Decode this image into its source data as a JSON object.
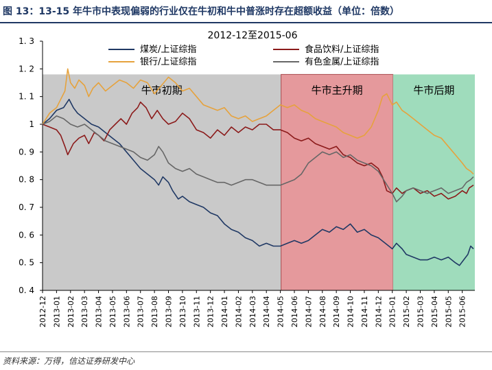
{
  "figure": {
    "title": "图 13：13-15 年牛市中表现偏弱的行业仅在牛初和牛中普涨时存在超额收益（单位：倍数）",
    "source": "资料来源：万得，信达证券研发中心"
  },
  "chart_data": {
    "type": "line",
    "title": "2012-12至2015-06",
    "xlabel": "",
    "ylabel": "",
    "ylim": [
      0.4,
      1.3
    ],
    "yticks": [
      0.4,
      0.5,
      0.6,
      0.7,
      0.8,
      0.9,
      1,
      1.1,
      1.2,
      1.3
    ],
    "ytick_labels": [
      "0. 4",
      "0. 5",
      "0. 6",
      "0. 7",
      "0. 8",
      "0. 9",
      "1",
      "1. 1",
      "1. 2",
      "1. 3"
    ],
    "categories": [
      "2012-12",
      "2013-01",
      "2013-02",
      "2013-03",
      "2013-04",
      "2013-05",
      "2013-06",
      "2013-07",
      "2013-08",
      "2013-09",
      "2013-10",
      "2013-11",
      "2013-12",
      "2014-01",
      "2014-02",
      "2014-03",
      "2014-04",
      "2014-05",
      "2014-06",
      "2014-07",
      "2014-08",
      "2014-09",
      "2014-10",
      "2014-11",
      "2014-12",
      "2015-01",
      "2015-02",
      "2015-03",
      "2015-04",
      "2015-05",
      "2015-06"
    ],
    "grid": false,
    "legend_position": "top",
    "phases": [
      {
        "label": "牛市初期",
        "start": 0,
        "end": 17.05,
        "color": "#c9c9c9",
        "ymax": 1.18
      },
      {
        "label": "牛市主升期",
        "start": 17.05,
        "end": 25.05,
        "color": "#e5999c",
        "ymax": 1.18
      },
      {
        "label": "牛市后期",
        "start": 25.05,
        "end": 30.9,
        "color": "#9fdcbc",
        "ymax": 1.18
      }
    ],
    "series": [
      {
        "name": "煤炭/上证综指",
        "color": "#1f3864",
        "points": [
          [
            0,
            1.0
          ],
          [
            0.5,
            1.02
          ],
          [
            1,
            1.05
          ],
          [
            1.5,
            1.06
          ],
          [
            1.9,
            1.09
          ],
          [
            2.2,
            1.06
          ],
          [
            2.5,
            1.04
          ],
          [
            3,
            1.02
          ],
          [
            3.5,
            1.0
          ],
          [
            4,
            0.99
          ],
          [
            4.5,
            0.97
          ],
          [
            5,
            0.95
          ],
          [
            5.5,
            0.93
          ],
          [
            6,
            0.9
          ],
          [
            6.5,
            0.87
          ],
          [
            7,
            0.84
          ],
          [
            7.5,
            0.82
          ],
          [
            8,
            0.8
          ],
          [
            8.3,
            0.78
          ],
          [
            8.6,
            0.81
          ],
          [
            9,
            0.79
          ],
          [
            9.3,
            0.76
          ],
          [
            9.7,
            0.73
          ],
          [
            10,
            0.74
          ],
          [
            10.5,
            0.72
          ],
          [
            11,
            0.71
          ],
          [
            11.5,
            0.7
          ],
          [
            12,
            0.68
          ],
          [
            12.5,
            0.67
          ],
          [
            13,
            0.64
          ],
          [
            13.5,
            0.62
          ],
          [
            14,
            0.61
          ],
          [
            14.5,
            0.59
          ],
          [
            15,
            0.58
          ],
          [
            15.5,
            0.56
          ],
          [
            16,
            0.57
          ],
          [
            16.5,
            0.56
          ],
          [
            17,
            0.56
          ],
          [
            17.5,
            0.57
          ],
          [
            18,
            0.58
          ],
          [
            18.5,
            0.57
          ],
          [
            19,
            0.58
          ],
          [
            19.5,
            0.6
          ],
          [
            20,
            0.62
          ],
          [
            20.5,
            0.61
          ],
          [
            21,
            0.63
          ],
          [
            21.5,
            0.62
          ],
          [
            22,
            0.64
          ],
          [
            22.5,
            0.61
          ],
          [
            23,
            0.62
          ],
          [
            23.5,
            0.6
          ],
          [
            24,
            0.59
          ],
          [
            24.5,
            0.57
          ],
          [
            25,
            0.55
          ],
          [
            25.3,
            0.57
          ],
          [
            25.7,
            0.55
          ],
          [
            26,
            0.53
          ],
          [
            26.5,
            0.52
          ],
          [
            27,
            0.51
          ],
          [
            27.5,
            0.51
          ],
          [
            28,
            0.52
          ],
          [
            28.5,
            0.51
          ],
          [
            29,
            0.52
          ],
          [
            29.5,
            0.5
          ],
          [
            29.8,
            0.49
          ],
          [
            30.1,
            0.51
          ],
          [
            30.4,
            0.53
          ],
          [
            30.6,
            0.56
          ],
          [
            30.8,
            0.55
          ]
        ]
      },
      {
        "name": "食品饮料/上证综指",
        "color": "#8b1a1a",
        "points": [
          [
            0,
            1.0
          ],
          [
            0.5,
            0.99
          ],
          [
            1,
            0.98
          ],
          [
            1.3,
            0.96
          ],
          [
            1.6,
            0.92
          ],
          [
            1.8,
            0.89
          ],
          [
            2.2,
            0.93
          ],
          [
            2.6,
            0.95
          ],
          [
            3,
            0.96
          ],
          [
            3.3,
            0.93
          ],
          [
            3.7,
            0.97
          ],
          [
            4,
            0.96
          ],
          [
            4.4,
            0.94
          ],
          [
            4.8,
            0.98
          ],
          [
            5.2,
            1.0
          ],
          [
            5.6,
            1.02
          ],
          [
            6,
            1.0
          ],
          [
            6.4,
            1.04
          ],
          [
            6.8,
            1.06
          ],
          [
            7,
            1.08
          ],
          [
            7.4,
            1.06
          ],
          [
            7.8,
            1.02
          ],
          [
            8.2,
            1.05
          ],
          [
            8.6,
            1.02
          ],
          [
            9,
            1.0
          ],
          [
            9.5,
            1.01
          ],
          [
            10,
            1.04
          ],
          [
            10.5,
            1.02
          ],
          [
            11,
            0.98
          ],
          [
            11.5,
            0.97
          ],
          [
            12,
            0.95
          ],
          [
            12.5,
            0.98
          ],
          [
            13,
            0.96
          ],
          [
            13.5,
            0.99
          ],
          [
            14,
            0.97
          ],
          [
            14.5,
            0.99
          ],
          [
            15,
            0.98
          ],
          [
            15.5,
            1.0
          ],
          [
            16,
            1.0
          ],
          [
            16.5,
            0.98
          ],
          [
            17,
            0.98
          ],
          [
            17.5,
            0.97
          ],
          [
            18,
            0.95
          ],
          [
            18.5,
            0.94
          ],
          [
            19,
            0.95
          ],
          [
            19.5,
            0.93
          ],
          [
            20,
            0.92
          ],
          [
            20.5,
            0.91
          ],
          [
            21,
            0.92
          ],
          [
            21.5,
            0.89
          ],
          [
            22,
            0.88
          ],
          [
            22.5,
            0.86
          ],
          [
            23,
            0.85
          ],
          [
            23.5,
            0.86
          ],
          [
            24,
            0.84
          ],
          [
            24.3,
            0.81
          ],
          [
            24.6,
            0.76
          ],
          [
            25,
            0.75
          ],
          [
            25.3,
            0.77
          ],
          [
            25.7,
            0.75
          ],
          [
            26,
            0.76
          ],
          [
            26.5,
            0.77
          ],
          [
            27,
            0.75
          ],
          [
            27.5,
            0.76
          ],
          [
            28,
            0.74
          ],
          [
            28.5,
            0.75
          ],
          [
            29,
            0.73
          ],
          [
            29.5,
            0.74
          ],
          [
            30,
            0.76
          ],
          [
            30.3,
            0.75
          ],
          [
            30.5,
            0.77
          ],
          [
            30.8,
            0.78
          ]
        ]
      },
      {
        "name": "银行/上证综指",
        "color": "#e6a23c",
        "points": [
          [
            0,
            1.0
          ],
          [
            0.5,
            1.04
          ],
          [
            1,
            1.06
          ],
          [
            1.3,
            1.09
          ],
          [
            1.6,
            1.12
          ],
          [
            1.8,
            1.2
          ],
          [
            2,
            1.15
          ],
          [
            2.3,
            1.13
          ],
          [
            2.6,
            1.16
          ],
          [
            3,
            1.14
          ],
          [
            3.3,
            1.1
          ],
          [
            3.6,
            1.13
          ],
          [
            4,
            1.15
          ],
          [
            4.5,
            1.12
          ],
          [
            5,
            1.14
          ],
          [
            5.5,
            1.16
          ],
          [
            6,
            1.15
          ],
          [
            6.5,
            1.13
          ],
          [
            7,
            1.16
          ],
          [
            7.5,
            1.15
          ],
          [
            8,
            1.11
          ],
          [
            8.5,
            1.14
          ],
          [
            9,
            1.17
          ],
          [
            9.5,
            1.15
          ],
          [
            10,
            1.12
          ],
          [
            10.5,
            1.13
          ],
          [
            11,
            1.1
          ],
          [
            11.5,
            1.07
          ],
          [
            12,
            1.06
          ],
          [
            12.5,
            1.05
          ],
          [
            13,
            1.06
          ],
          [
            13.5,
            1.03
          ],
          [
            14,
            1.02
          ],
          [
            14.5,
            1.03
          ],
          [
            15,
            1.01
          ],
          [
            15.5,
            1.02
          ],
          [
            16,
            1.03
          ],
          [
            16.5,
            1.05
          ],
          [
            17,
            1.07
          ],
          [
            17.5,
            1.06
          ],
          [
            18,
            1.07
          ],
          [
            18.5,
            1.05
          ],
          [
            19,
            1.04
          ],
          [
            19.5,
            1.02
          ],
          [
            20,
            1.01
          ],
          [
            20.5,
            1.0
          ],
          [
            21,
            0.99
          ],
          [
            21.5,
            0.97
          ],
          [
            22,
            0.96
          ],
          [
            22.5,
            0.95
          ],
          [
            23,
            0.96
          ],
          [
            23.5,
            0.99
          ],
          [
            24,
            1.05
          ],
          [
            24.3,
            1.1
          ],
          [
            24.6,
            1.11
          ],
          [
            25,
            1.07
          ],
          [
            25.3,
            1.08
          ],
          [
            25.7,
            1.05
          ],
          [
            26,
            1.04
          ],
          [
            26.5,
            1.02
          ],
          [
            27,
            1.0
          ],
          [
            27.5,
            0.98
          ],
          [
            28,
            0.96
          ],
          [
            28.5,
            0.95
          ],
          [
            29,
            0.92
          ],
          [
            29.5,
            0.89
          ],
          [
            30,
            0.86
          ],
          [
            30.3,
            0.84
          ],
          [
            30.6,
            0.83
          ],
          [
            30.8,
            0.82
          ]
        ]
      },
      {
        "name": "有色金属/上证综指",
        "color": "#666666",
        "points": [
          [
            0,
            1.0
          ],
          [
            0.5,
            1.01
          ],
          [
            1,
            1.03
          ],
          [
            1.5,
            1.02
          ],
          [
            2,
            1.0
          ],
          [
            2.5,
            0.99
          ],
          [
            3,
            1.0
          ],
          [
            3.5,
            0.98
          ],
          [
            4,
            0.96
          ],
          [
            4.5,
            0.94
          ],
          [
            5,
            0.93
          ],
          [
            5.5,
            0.92
          ],
          [
            6,
            0.91
          ],
          [
            6.5,
            0.9
          ],
          [
            7,
            0.88
          ],
          [
            7.5,
            0.87
          ],
          [
            8,
            0.89
          ],
          [
            8.3,
            0.92
          ],
          [
            8.6,
            0.9
          ],
          [
            9,
            0.86
          ],
          [
            9.5,
            0.84
          ],
          [
            10,
            0.83
          ],
          [
            10.5,
            0.84
          ],
          [
            11,
            0.82
          ],
          [
            11.5,
            0.81
          ],
          [
            12,
            0.8
          ],
          [
            12.5,
            0.79
          ],
          [
            13,
            0.79
          ],
          [
            13.5,
            0.78
          ],
          [
            14,
            0.79
          ],
          [
            14.5,
            0.8
          ],
          [
            15,
            0.8
          ],
          [
            15.5,
            0.79
          ],
          [
            16,
            0.78
          ],
          [
            16.5,
            0.78
          ],
          [
            17,
            0.78
          ],
          [
            17.5,
            0.79
          ],
          [
            18,
            0.8
          ],
          [
            18.5,
            0.82
          ],
          [
            19,
            0.86
          ],
          [
            19.5,
            0.88
          ],
          [
            20,
            0.9
          ],
          [
            20.5,
            0.89
          ],
          [
            21,
            0.9
          ],
          [
            21.5,
            0.88
          ],
          [
            22,
            0.89
          ],
          [
            22.5,
            0.87
          ],
          [
            23,
            0.86
          ],
          [
            23.5,
            0.85
          ],
          [
            24,
            0.83
          ],
          [
            24.5,
            0.79
          ],
          [
            25,
            0.75
          ],
          [
            25.3,
            0.72
          ],
          [
            25.7,
            0.74
          ],
          [
            26,
            0.76
          ],
          [
            26.5,
            0.77
          ],
          [
            27,
            0.76
          ],
          [
            27.5,
            0.75
          ],
          [
            28,
            0.76
          ],
          [
            28.5,
            0.77
          ],
          [
            29,
            0.75
          ],
          [
            29.5,
            0.76
          ],
          [
            30,
            0.77
          ],
          [
            30.3,
            0.79
          ],
          [
            30.6,
            0.8
          ],
          [
            30.8,
            0.81
          ]
        ]
      }
    ]
  }
}
